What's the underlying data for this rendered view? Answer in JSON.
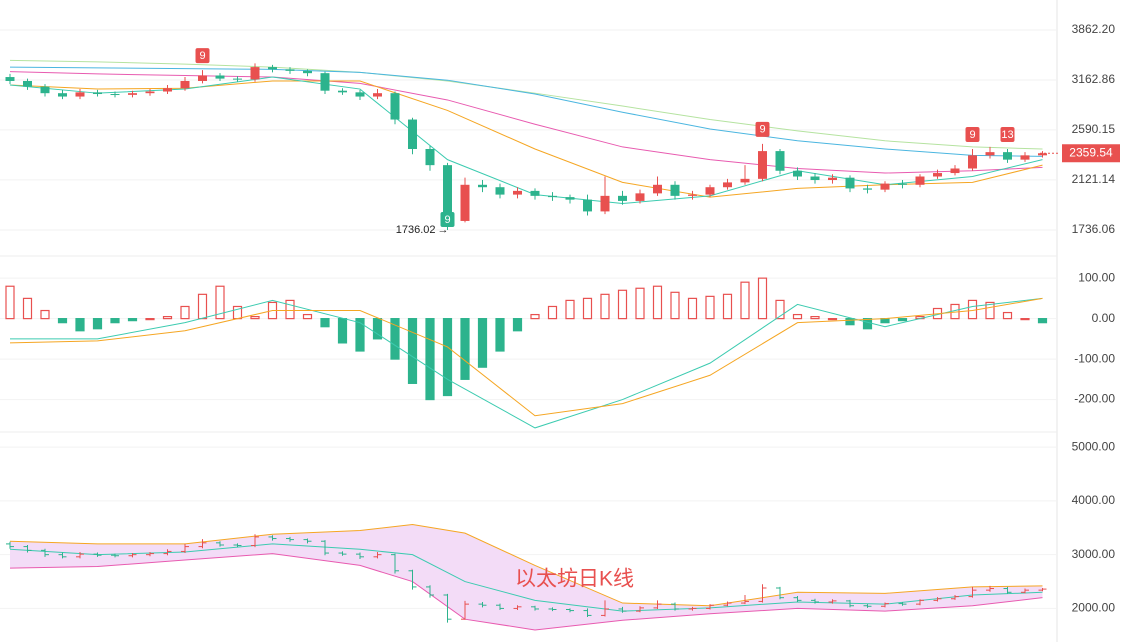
{
  "chart_data": [
    {
      "type": "candlestick",
      "log_scale": true,
      "up_color": "#e8504f",
      "down_color": "#2cb38d",
      "ylim": [
        1736.06,
        3862.2
      ],
      "yticks": [
        {
          "value": 3862.2,
          "label": "3862.20"
        },
        {
          "value": 3162.86,
          "label": "3162.86"
        },
        {
          "value": 2590.15,
          "label": "2590.15"
        },
        {
          "value": 2121.14,
          "label": "2121.14"
        },
        {
          "value": 1736.06,
          "label": "1736.06"
        }
      ],
      "open": [
        3200,
        3150,
        3080,
        3000,
        2960,
        3010,
        2990,
        2980,
        3000,
        3020,
        3060,
        3150,
        3220,
        3180,
        3170,
        3330,
        3300,
        3280,
        3250,
        3030,
        3010,
        2960,
        3000,
        2700,
        2400,
        2250,
        1800,
        2080,
        2060,
        2000,
        2030,
        1990,
        1980,
        1960,
        1870,
        1990,
        1950,
        2010,
        2080,
        1990,
        2000,
        2060,
        2100,
        2130,
        2380,
        2200,
        2150,
        2120,
        2140,
        2050,
        2040,
        2090,
        2080,
        2150,
        2180,
        2220,
        2340,
        2370,
        2300,
        2340
      ],
      "high": [
        3240,
        3180,
        3110,
        3040,
        3050,
        3040,
        3020,
        3030,
        3050,
        3100,
        3200,
        3290,
        3250,
        3210,
        3380,
        3360,
        3330,
        3300,
        3270,
        3060,
        3040,
        3050,
        3020,
        2720,
        2430,
        2270,
        2140,
        2120,
        2090,
        2060,
        2050,
        2020,
        2000,
        2000,
        2150,
        2030,
        2040,
        2150,
        2110,
        2030,
        2080,
        2130,
        2250,
        2450,
        2400,
        2230,
        2180,
        2170,
        2160,
        2080,
        2110,
        2120,
        2170,
        2210,
        2250,
        2400,
        2420,
        2400,
        2370,
        2380
      ],
      "low": [
        3110,
        3040,
        2960,
        2930,
        2930,
        2960,
        2950,
        2950,
        2970,
        2990,
        3030,
        3120,
        3150,
        3140,
        3140,
        3260,
        3240,
        3210,
        2990,
        2980,
        2920,
        2930,
        2650,
        2350,
        2200,
        1736.02,
        1790,
        2020,
        1970,
        1970,
        1960,
        1950,
        1930,
        1840,
        1850,
        1920,
        1930,
        1990,
        1960,
        1960,
        1980,
        2040,
        2080,
        2110,
        2170,
        2120,
        2090,
        2090,
        2020,
        2010,
        2020,
        2050,
        2060,
        2130,
        2160,
        2200,
        2310,
        2270,
        2280,
        2320
      ],
      "close": [
        3150,
        3080,
        3000,
        2960,
        3010,
        2990,
        2980,
        3000,
        3020,
        3060,
        3150,
        3220,
        3180,
        3170,
        3330,
        3300,
        3280,
        3250,
        3030,
        3010,
        2960,
        3000,
        2700,
        2400,
        2250,
        1800,
        2080,
        2060,
        2000,
        2030,
        1990,
        1980,
        1960,
        1870,
        1990,
        1950,
        2010,
        2080,
        1990,
        2000,
        2060,
        2100,
        2130,
        2380,
        2200,
        2150,
        2120,
        2140,
        2050,
        2040,
        2090,
        2080,
        2150,
        2180,
        2220,
        2340,
        2370,
        2300,
        2340,
        2359.54
      ],
      "ma_x": [
        0,
        5,
        10,
        15,
        20,
        25,
        30,
        35,
        40,
        45,
        50,
        55,
        59
      ],
      "lines": [
        {
          "color": "#b5e3a0",
          "values": [
            3420,
            3400,
            3370,
            3330,
            3260,
            3150,
            3000,
            2850,
            2700,
            2580,
            2480,
            2420,
            2400
          ]
        },
        {
          "color": "#4bb6e0",
          "values": [
            3330,
            3320,
            3310,
            3300,
            3260,
            3160,
            2990,
            2780,
            2600,
            2480,
            2400,
            2340,
            2330
          ]
        },
        {
          "color": "#e85bb0",
          "values": [
            3270,
            3240,
            3220,
            3200,
            3120,
            2920,
            2650,
            2420,
            2300,
            2220,
            2180,
            2200,
            2230
          ]
        },
        {
          "color": "#f5a623",
          "values": [
            3100,
            3050,
            3060,
            3150,
            3150,
            2800,
            2400,
            2100,
            1980,
            2050,
            2080,
            2100,
            2250
          ]
        },
        {
          "color": "#3ccbb0",
          "values": [
            3100,
            3000,
            3050,
            3200,
            3050,
            2300,
            2000,
            1930,
            1990,
            2200,
            2080,
            2150,
            2300
          ]
        }
      ],
      "markers": [
        {
          "index": 11,
          "text": "9",
          "color": "#e8504f"
        },
        {
          "index": 43,
          "text": "9",
          "color": "#e8504f"
        },
        {
          "index": 55,
          "text": "9",
          "color": "#e8504f"
        },
        {
          "index": 57,
          "text": "13",
          "color": "#e8504f"
        },
        {
          "index": 25,
          "text": "9",
          "color": "#2cb38d"
        }
      ],
      "low_label": {
        "index": 25,
        "text": "1736.02"
      },
      "last_price_label": "2359.54"
    },
    {
      "type": "macd",
      "up_color": "#e8504f",
      "down_color": "#2cb38d",
      "ylim": [
        -290,
        130
      ],
      "yticks": [
        {
          "value": 100,
          "label": "100.00"
        },
        {
          "value": 0,
          "label": "0.00"
        },
        {
          "value": -100,
          "label": "-100.00"
        },
        {
          "value": -200,
          "label": "-200.00"
        }
      ],
      "values": [
        80,
        50,
        20,
        -10,
        -30,
        -25,
        -10,
        -5,
        0,
        5,
        30,
        60,
        80,
        30,
        5,
        40,
        45,
        10,
        -20,
        -60,
        -80,
        -50,
        -100,
        -160,
        -200,
        -190,
        -150,
        -120,
        -80,
        -30,
        10,
        30,
        45,
        50,
        60,
        70,
        75,
        80,
        65,
        50,
        55,
        60,
        90,
        100,
        45,
        10,
        5,
        0,
        -15,
        -25,
        -10,
        -5,
        5,
        25,
        35,
        45,
        40,
        15,
        0,
        -10
      ],
      "line_x": [
        0,
        5,
        10,
        15,
        20,
        25,
        30,
        35,
        40,
        45,
        50,
        55,
        59
      ],
      "lines": [
        {
          "color": "#3ccbb0",
          "values": [
            -50,
            -50,
            -10,
            45,
            -10,
            -150,
            -270,
            -200,
            -110,
            35,
            -20,
            30,
            50
          ]
        },
        {
          "color": "#f5a623",
          "values": [
            -60,
            -55,
            -30,
            20,
            20,
            -70,
            -240,
            -210,
            -140,
            -10,
            0,
            20,
            50
          ]
        }
      ]
    },
    {
      "type": "bollinger",
      "title": "以太坊日K线",
      "fill": "#f3dcf7",
      "ylim": [
        1450,
        5300
      ],
      "yticks": [
        {
          "value": 5000,
          "label": "5000.00"
        },
        {
          "value": 4000,
          "label": "4000.00"
        },
        {
          "value": 3000,
          "label": "3000.00"
        },
        {
          "value": 2000,
          "label": "2000.00"
        }
      ],
      "band_x": [
        0,
        5,
        10,
        15,
        20,
        23,
        26,
        30,
        35,
        40,
        45,
        50,
        55,
        59
      ],
      "lines": [
        {
          "color": "#f5a623",
          "values": [
            3250,
            3200,
            3200,
            3380,
            3450,
            3560,
            3400,
            2800,
            2100,
            2050,
            2300,
            2280,
            2400,
            2420
          ]
        },
        {
          "color": "#3ccbb0",
          "values": [
            3100,
            3000,
            3050,
            3200,
            3100,
            3000,
            2500,
            2150,
            1950,
            2010,
            2120,
            2080,
            2250,
            2300
          ]
        },
        {
          "color": "#e85bb0",
          "values": [
            2750,
            2780,
            2900,
            3020,
            2800,
            2500,
            1800,
            1600,
            1780,
            1900,
            2000,
            1950,
            2050,
            2200
          ]
        }
      ]
    }
  ]
}
